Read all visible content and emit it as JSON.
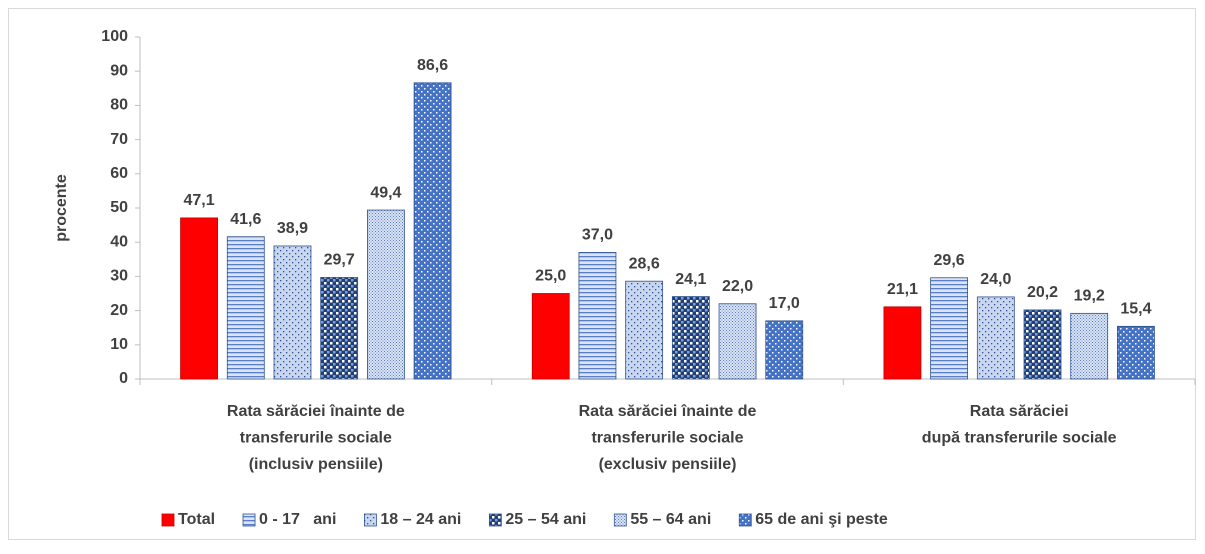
{
  "chart_data": {
    "type": "bar",
    "ylabel": "procente",
    "categories": [
      "Rata sărăciei înainte de\ntransferurile sociale\n(inclusiv pensiile)",
      "Rata sărăciei înainte de\ntransferurile sociale\n(exclusiv pensiile)",
      "Rata sărăciei\ndupă transferurile sociale"
    ],
    "series": [
      {
        "name": "Total",
        "color": "#ff0000",
        "pattern": "solid",
        "values": [
          47.1,
          25.0,
          21.1
        ],
        "value_labels": [
          "47,1",
          "25,0",
          "21,1"
        ]
      },
      {
        "name": "0 - 17   ani",
        "color": "#5b7fc4",
        "pattern": "hlines",
        "values": [
          41.6,
          37.0,
          29.6
        ],
        "value_labels": [
          "41,6",
          "37,0",
          "29,6"
        ]
      },
      {
        "name": "18 – 24 ani",
        "color": "#5b7fc4",
        "pattern": "dots",
        "values": [
          38.9,
          28.6,
          24.0
        ],
        "value_labels": [
          "38,9",
          "28,6",
          "24,0"
        ]
      },
      {
        "name": "25 – 54 ani",
        "color": "#1f3f7a",
        "pattern": "checker",
        "values": [
          29.7,
          24.1,
          20.2
        ],
        "value_labels": [
          "29,7",
          "24,1",
          "20,2"
        ]
      },
      {
        "name": "55 – 64 ani",
        "color": "#5b7fc4",
        "pattern": "grid",
        "values": [
          49.4,
          22.0,
          19.2
        ],
        "value_labels": [
          "49,4",
          "22,0",
          "19,2"
        ]
      },
      {
        "name": "65 de ani şi peste",
        "color": "#4472c4",
        "pattern": "bluedots",
        "values": [
          86.6,
          17.0,
          15.4
        ],
        "value_labels": [
          "86,6",
          "17,0",
          "15,4"
        ]
      }
    ],
    "ylim": [
      0,
      100
    ],
    "yticks": [
      0,
      10,
      20,
      30,
      40,
      50,
      60,
      70,
      80,
      90,
      100
    ],
    "grid": false,
    "legend": "bottom"
  }
}
